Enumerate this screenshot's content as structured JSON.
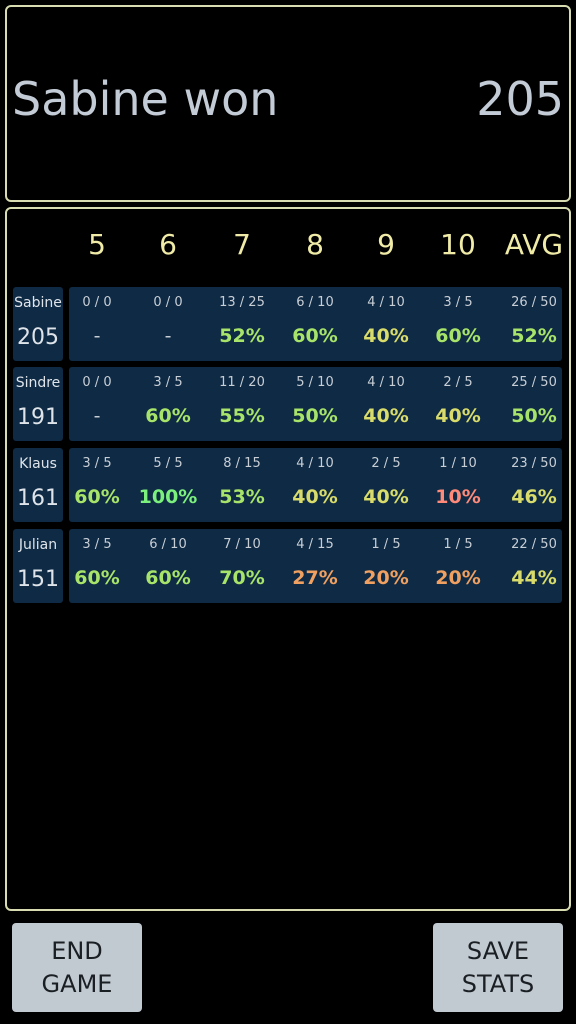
{
  "header": {
    "winner_text": "Sabine won",
    "winner_score": "205"
  },
  "columns": [
    "5",
    "6",
    "7",
    "8",
    "9",
    "10",
    "AVG"
  ],
  "colors": {
    "pct_100": "#7cf07c",
    "pct_high": "#a8e46a",
    "pct_mid": "#d9dc6a",
    "pct_low": "#f0a060",
    "pct_vlow": "#ff8a7a",
    "pct_none": "#c8ced6"
  },
  "players": [
    {
      "name": "Sabine",
      "score": "205",
      "cells": [
        {
          "frac": "0 / 0",
          "pct": "-"
        },
        {
          "frac": "0 / 0",
          "pct": "-"
        },
        {
          "frac": "13 / 25",
          "pct": "52%"
        },
        {
          "frac": "6 / 10",
          "pct": "60%"
        },
        {
          "frac": "4 / 10",
          "pct": "40%"
        },
        {
          "frac": "3 / 5",
          "pct": "60%"
        },
        {
          "frac": "26 / 50",
          "pct": "52%"
        }
      ]
    },
    {
      "name": "Sindre",
      "score": "191",
      "cells": [
        {
          "frac": "0 / 0",
          "pct": "-"
        },
        {
          "frac": "3 / 5",
          "pct": "60%"
        },
        {
          "frac": "11 / 20",
          "pct": "55%"
        },
        {
          "frac": "5 / 10",
          "pct": "50%"
        },
        {
          "frac": "4 / 10",
          "pct": "40%"
        },
        {
          "frac": "2 / 5",
          "pct": "40%"
        },
        {
          "frac": "25 / 50",
          "pct": "50%"
        }
      ]
    },
    {
      "name": "Klaus",
      "score": "161",
      "cells": [
        {
          "frac": "3 / 5",
          "pct": "60%"
        },
        {
          "frac": "5 / 5",
          "pct": "100%"
        },
        {
          "frac": "8 / 15",
          "pct": "53%"
        },
        {
          "frac": "4 / 10",
          "pct": "40%"
        },
        {
          "frac": "2 / 5",
          "pct": "40%"
        },
        {
          "frac": "1 / 10",
          "pct": "10%"
        },
        {
          "frac": "23 / 50",
          "pct": "46%"
        }
      ]
    },
    {
      "name": "Julian",
      "score": "151",
      "cells": [
        {
          "frac": "3 / 5",
          "pct": "60%"
        },
        {
          "frac": "6 / 10",
          "pct": "60%"
        },
        {
          "frac": "7 / 10",
          "pct": "70%"
        },
        {
          "frac": "4 / 15",
          "pct": "27%"
        },
        {
          "frac": "1 / 5",
          "pct": "20%"
        },
        {
          "frac": "1 / 5",
          "pct": "20%"
        },
        {
          "frac": "22 / 50",
          "pct": "44%"
        }
      ]
    }
  ],
  "buttons": {
    "end_game_line1": "END",
    "end_game_line2": "GAME",
    "save_stats_line1": "SAVE",
    "save_stats_line2": "STATS"
  }
}
